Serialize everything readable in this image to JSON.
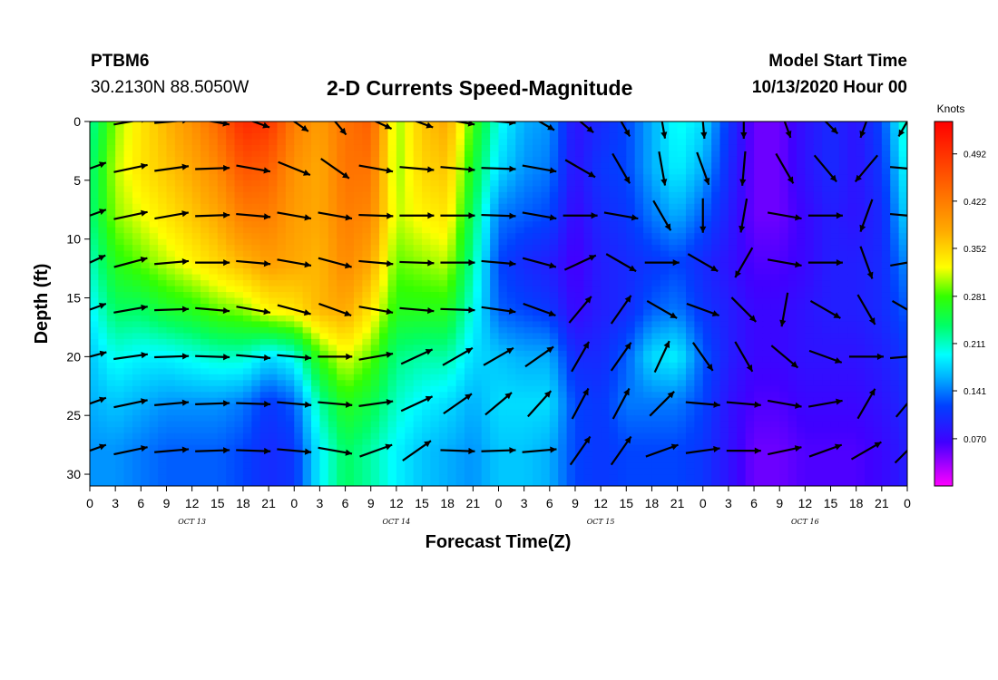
{
  "header": {
    "station": "PTBM6",
    "coords": "30.2130N 88.5050W",
    "title": "2-D Currents Speed-Magnitude",
    "model_label": "Model Start Time",
    "model_value": "10/13/2020 Hour 00"
  },
  "chart_data": {
    "type": "heatmap",
    "title": "2-D Currents Speed-Magnitude",
    "xlabel": "Forecast Time(Z)",
    "ylabel": "Depth (ft)",
    "x_tick_labels": [
      "0",
      "3",
      "6",
      "9",
      "12",
      "15",
      "18",
      "21",
      "0",
      "3",
      "6",
      "9",
      "12",
      "15",
      "18",
      "21",
      "0",
      "3",
      "6",
      "9",
      "12",
      "15",
      "18",
      "21",
      "0",
      "3",
      "6",
      "9",
      "12",
      "15",
      "18",
      "21",
      "0"
    ],
    "day_labels": [
      "OCT 13",
      "OCT 14",
      "OCT 15",
      "OCT 16"
    ],
    "y_ticks": [
      0,
      5,
      10,
      15,
      20,
      25,
      30
    ],
    "ylim": [
      0,
      31
    ],
    "x_range_hours": [
      0,
      96
    ],
    "colorbar": {
      "unit": "Knots",
      "tick_labels": [
        "0.492",
        "0.422",
        "0.352",
        "0.281",
        "0.211",
        "0.141",
        "0.070"
      ],
      "tick_values": [
        0.492,
        0.422,
        0.352,
        0.281,
        0.211,
        0.141,
        0.07
      ],
      "range": [
        0.0,
        0.54
      ]
    },
    "depths_ft": [
      0,
      4,
      8,
      12,
      16,
      20,
      24,
      28
    ],
    "speed_grid_hours": [
      0,
      3,
      6,
      9,
      12,
      15,
      18,
      21,
      24,
      27,
      30,
      33,
      36,
      39,
      42,
      45,
      48,
      51,
      54,
      57,
      60,
      63,
      66,
      69,
      72,
      75,
      78,
      81,
      84,
      87,
      90,
      93,
      96
    ],
    "speed_knots": [
      [
        0.22,
        0.3,
        0.34,
        0.37,
        0.4,
        0.44,
        0.5,
        0.49,
        0.42,
        0.39,
        0.43,
        0.45,
        0.3,
        0.36,
        0.38,
        0.28,
        0.2,
        0.16,
        0.15,
        0.08,
        0.1,
        0.12,
        0.16,
        0.2,
        0.18,
        0.11,
        0.05,
        0.05,
        0.08,
        0.1,
        0.08,
        0.12,
        0.22
      ],
      [
        0.23,
        0.31,
        0.34,
        0.36,
        0.38,
        0.41,
        0.46,
        0.45,
        0.4,
        0.38,
        0.43,
        0.43,
        0.3,
        0.35,
        0.36,
        0.26,
        0.18,
        0.15,
        0.14,
        0.08,
        0.11,
        0.12,
        0.16,
        0.19,
        0.16,
        0.1,
        0.05,
        0.05,
        0.08,
        0.1,
        0.08,
        0.11,
        0.2
      ],
      [
        0.23,
        0.3,
        0.32,
        0.34,
        0.36,
        0.38,
        0.42,
        0.42,
        0.39,
        0.38,
        0.42,
        0.41,
        0.31,
        0.33,
        0.34,
        0.24,
        0.14,
        0.13,
        0.12,
        0.07,
        0.1,
        0.11,
        0.14,
        0.16,
        0.13,
        0.09,
        0.05,
        0.05,
        0.07,
        0.09,
        0.08,
        0.1,
        0.18
      ],
      [
        0.21,
        0.27,
        0.29,
        0.31,
        0.33,
        0.35,
        0.37,
        0.39,
        0.38,
        0.37,
        0.41,
        0.38,
        0.29,
        0.3,
        0.31,
        0.22,
        0.12,
        0.1,
        0.09,
        0.06,
        0.09,
        0.1,
        0.11,
        0.12,
        0.1,
        0.08,
        0.06,
        0.06,
        0.07,
        0.09,
        0.09,
        0.1,
        0.15
      ],
      [
        0.19,
        0.24,
        0.24,
        0.26,
        0.27,
        0.29,
        0.3,
        0.33,
        0.34,
        0.37,
        0.38,
        0.34,
        0.27,
        0.27,
        0.27,
        0.2,
        0.13,
        0.12,
        0.11,
        0.07,
        0.09,
        0.1,
        0.13,
        0.14,
        0.11,
        0.09,
        0.07,
        0.07,
        0.08,
        0.09,
        0.09,
        0.1,
        0.13
      ],
      [
        0.17,
        0.2,
        0.19,
        0.19,
        0.2,
        0.21,
        0.21,
        0.18,
        0.2,
        0.28,
        0.32,
        0.29,
        0.23,
        0.22,
        0.22,
        0.18,
        0.17,
        0.16,
        0.16,
        0.1,
        0.1,
        0.13,
        0.18,
        0.19,
        0.13,
        0.09,
        0.07,
        0.07,
        0.08,
        0.08,
        0.08,
        0.09,
        0.11
      ],
      [
        0.16,
        0.17,
        0.16,
        0.15,
        0.15,
        0.15,
        0.14,
        0.11,
        0.13,
        0.22,
        0.27,
        0.25,
        0.21,
        0.19,
        0.18,
        0.16,
        0.18,
        0.18,
        0.18,
        0.12,
        0.11,
        0.14,
        0.14,
        0.14,
        0.12,
        0.08,
        0.06,
        0.06,
        0.07,
        0.07,
        0.07,
        0.08,
        0.1
      ],
      [
        0.15,
        0.15,
        0.14,
        0.13,
        0.13,
        0.13,
        0.12,
        0.1,
        0.11,
        0.19,
        0.24,
        0.22,
        0.19,
        0.17,
        0.16,
        0.15,
        0.17,
        0.17,
        0.16,
        0.12,
        0.11,
        0.12,
        0.12,
        0.12,
        0.11,
        0.08,
        0.05,
        0.05,
        0.06,
        0.06,
        0.06,
        0.07,
        0.09
      ]
    ],
    "vector_hours": [
      0,
      4.8,
      9.6,
      14.4,
      19.2,
      24,
      28.8,
      33.6,
      38.4,
      43.2,
      48,
      52.8,
      57.6,
      62.4,
      67.2,
      72,
      76.8,
      81.6,
      86.4,
      91.2,
      96
    ],
    "vector_directions_deg": [
      [
        75,
        80,
        85,
        100,
        110,
        125,
        140,
        115,
        110,
        100,
        95,
        120,
        130,
        150,
        170,
        175,
        180,
        160,
        135,
        200,
        210
      ],
      [
        70,
        78,
        82,
        88,
        100,
        112,
        125,
        100,
        95,
        95,
        92,
        100,
        120,
        150,
        170,
        160,
        185,
        150,
        140,
        220,
        95
      ],
      [
        70,
        78,
        80,
        88,
        95,
        100,
        100,
        92,
        90,
        90,
        92,
        100,
        90,
        100,
        150,
        180,
        190,
        100,
        90,
        200,
        95
      ],
      [
        65,
        75,
        85,
        90,
        95,
        100,
        105,
        95,
        92,
        90,
        95,
        105,
        65,
        120,
        90,
        120,
        210,
        100,
        90,
        160,
        80
      ],
      [
        70,
        80,
        88,
        95,
        100,
        105,
        110,
        100,
        95,
        92,
        98,
        110,
        40,
        35,
        120,
        110,
        135,
        190,
        120,
        150,
        120
      ],
      [
        75,
        82,
        88,
        92,
        95,
        95,
        90,
        80,
        65,
        60,
        60,
        55,
        30,
        35,
        25,
        145,
        150,
        130,
        110,
        90,
        85
      ],
      [
        70,
        78,
        85,
        88,
        92,
        95,
        95,
        82,
        65,
        55,
        50,
        42,
        28,
        28,
        45,
        95,
        95,
        100,
        80,
        30,
        40
      ],
      [
        70,
        78,
        85,
        88,
        92,
        95,
        100,
        70,
        55,
        92,
        88,
        85,
        35,
        35,
        70,
        82,
        90,
        78,
        70,
        60,
        45
      ]
    ]
  }
}
